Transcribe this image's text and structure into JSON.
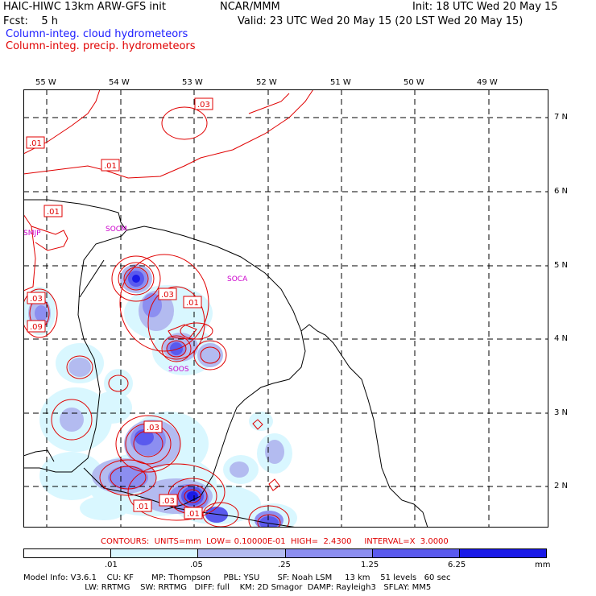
{
  "header": {
    "line1_left": "HAIC-HIWC 13km ARW-GFS init",
    "line1_mid": "NCAR/MMM",
    "line1_right": "Init: 18 UTC Wed 20 May 15",
    "line2_left": "Fcst:    5 h",
    "line2_right": "Valid: 23 UTC Wed 20 May 15 (20 LST Wed 20 May 15)",
    "legend_blue": "Column-integ. cloud hydrometeors",
    "legend_red": "Column-integ. precip. hydrometeors"
  },
  "colors": {
    "cloud_blue": "#1a1aff",
    "precip_red": "#e00000",
    "station_magenta": "#cc00cc",
    "fill_levels": [
      "#ffffff",
      "#d9f7ff",
      "#b3bbf0",
      "#8c8ef0",
      "#5a5aee",
      "#1a1ae8"
    ]
  },
  "map": {
    "lon_labels": [
      "55 W",
      "54 W",
      "53 W",
      "52 W",
      "51 W",
      "50 W",
      "49 W"
    ],
    "lat_labels": [
      "7 N",
      "6 N",
      "5 N",
      "4 N",
      "3 N",
      "2 N"
    ],
    "stations": [
      "SMJP",
      "SOCM",
      "SOCA",
      "SOOS"
    ],
    "contour_labels": [
      ".03",
      ".01",
      ".01",
      ".01",
      ".03",
      ".01",
      ".03",
      ".09",
      ".03",
      ".01",
      ".03",
      ".01"
    ]
  },
  "contours_line": "CONTOURS:  UNITS=mm  LOW= 0.10000E-01  HIGH=  2.4300     INTERVAL=X  3.0000",
  "colorbar": {
    "ticks": [
      ".01",
      ".05",
      ".25",
      "1.25",
      "6.25"
    ],
    "units": "mm"
  },
  "model_info": {
    "line1": "Model Info: V3.6.1    CU: KF       MP: Thompson     PBL: YSU       SF: Noah LSM     13 km    51 levels   60 sec",
    "line2": "                        LW: RRTMG    SW: RRTMG   DIFF: full    KM: 2D Smagor  DAMP: Rayleigh3   SFLAY: MM5"
  }
}
